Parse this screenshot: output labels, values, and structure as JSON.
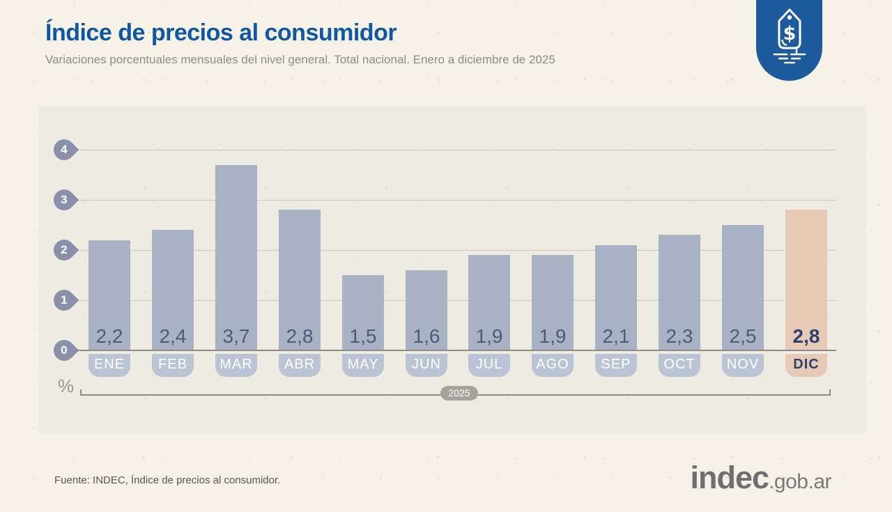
{
  "header": {
    "title": "Índice de precios al consumidor",
    "subtitle": "Variaciones porcentuales mensuales del nivel general. Total nacional. Enero a diciembre de 2025"
  },
  "icons": {
    "header_badge": "price-tag-icon"
  },
  "colors": {
    "title_blue": "#0e57a2",
    "logo_badge_blue": "#1e5b9c",
    "bar": "#a8b2c4",
    "highlight_bar": "#e7cab6",
    "month_badge": "#bac4d5",
    "value_text": "#4e5a78",
    "highlight_text": "#2e4170",
    "tick_pin": "#8a90a9",
    "gridline": "#cac7bf",
    "zero_line": "#8e8b83",
    "year_pill": "#a8a49c"
  },
  "chart_data": {
    "type": "bar",
    "title": "Índice de precios al consumidor",
    "subtitle": "Variaciones porcentuales mensuales del nivel general. Total nacional. Enero a diciembre de 2025",
    "categories": [
      "ENE",
      "FEB",
      "MAR",
      "ABR",
      "MAY",
      "JUN",
      "JUL",
      "AGO",
      "SEP",
      "OCT",
      "NOV",
      "DIC"
    ],
    "values": [
      2.2,
      2.4,
      3.7,
      2.8,
      1.5,
      1.6,
      1.9,
      1.9,
      2.1,
      2.3,
      2.5,
      2.8
    ],
    "value_labels": [
      "2,2",
      "2,4",
      "3,7",
      "2,8",
      "1,5",
      "1,6",
      "1,9",
      "1,9",
      "2,1",
      "2,3",
      "2,5",
      "2,8"
    ],
    "highlight_index": 11,
    "xlabel": "",
    "ylabel": "%",
    "ylim": [
      0,
      4
    ],
    "yticks": [
      0,
      1,
      2,
      3,
      4
    ],
    "x_axis_group_label": "2025",
    "grid": true,
    "legend": "none"
  },
  "footer": {
    "source": "Fuente: INDEC, Índice de precios al consumidor.",
    "logo_primary": "indec",
    "logo_suffix": ".gob.ar"
  }
}
